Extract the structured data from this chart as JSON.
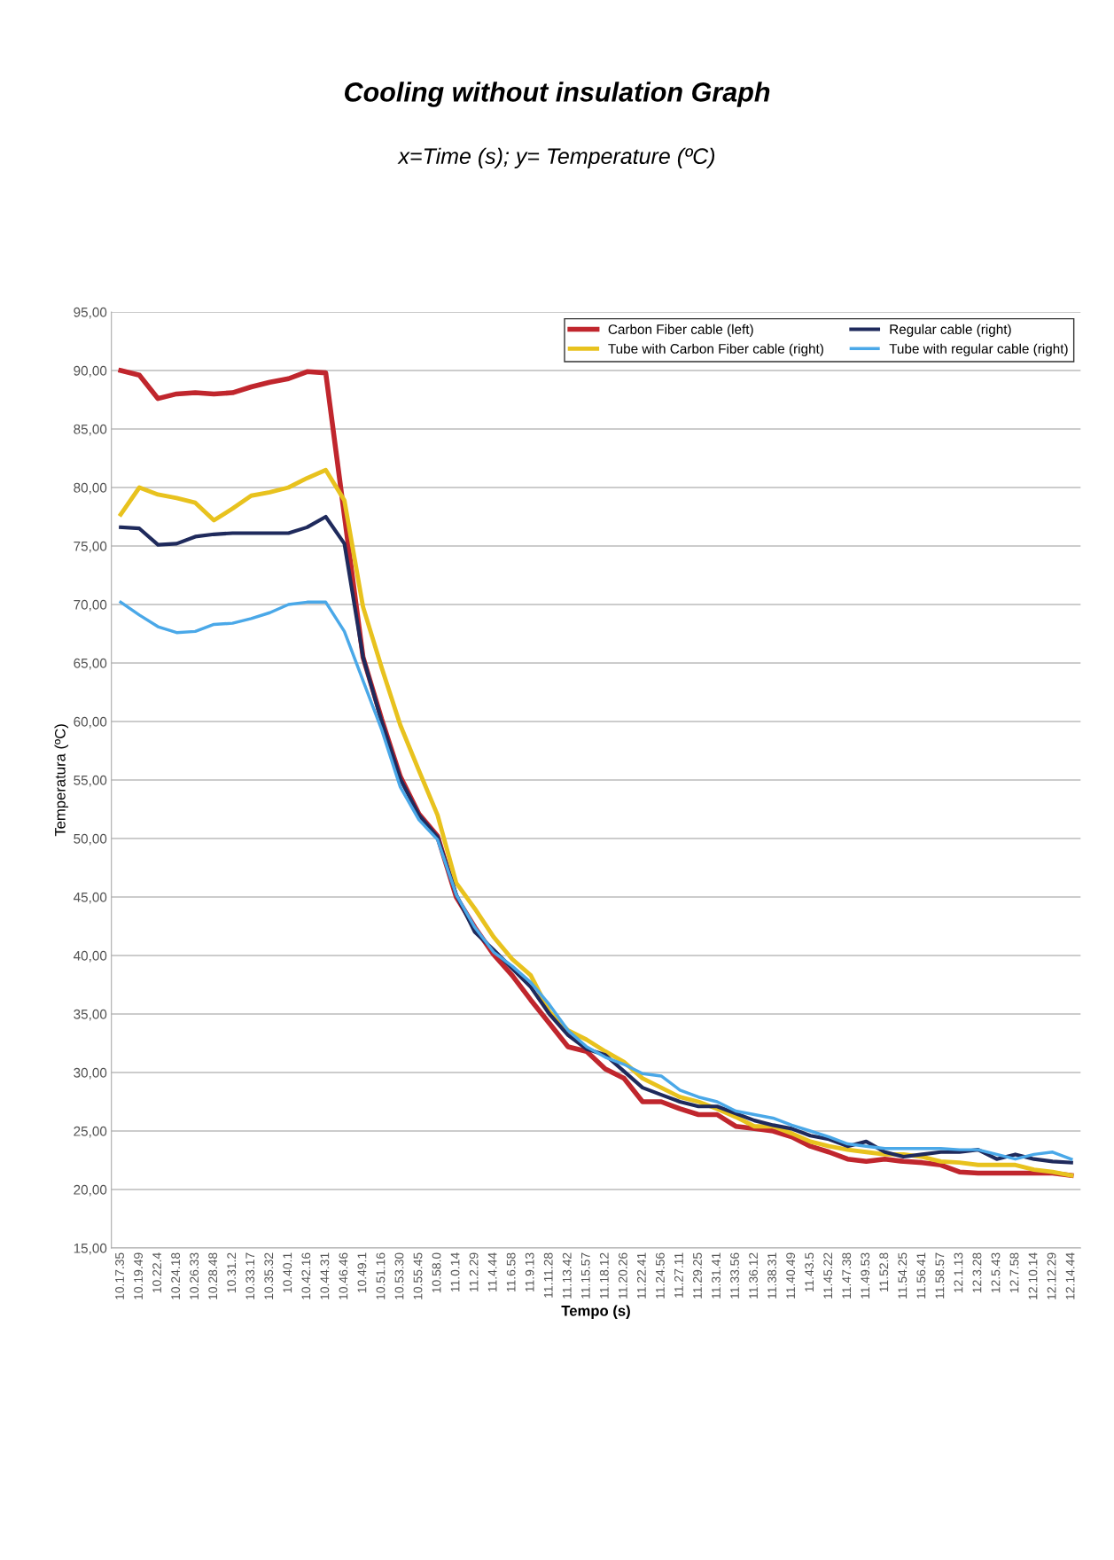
{
  "chart_data": {
    "type": "line",
    "title": "Cooling without insulation Graph",
    "subtitle": "x=Time (s); y= Temperature (ºC)",
    "xlabel": "Tempo (s)",
    "ylabel": "Temperatura (ºC)",
    "categories": [
      "10.17.35",
      "10.19.49",
      "10.22.4",
      "10.24.18",
      "10.26.33",
      "10.28.48",
      "10.31.2",
      "10.33.17",
      "10.35.32",
      "10.40.1",
      "10.42.16",
      "10.44.31",
      "10.46.46",
      "10.49.1",
      "10.51.16",
      "10.53.30",
      "10.55.45",
      "10.58.0",
      "11.0.14",
      "11.2.29",
      "11.4.44",
      "11.6.58",
      "11.9.13",
      "11.11.28",
      "11.13.42",
      "11.15.57",
      "11.18.12",
      "11.20.26",
      "11.22.41",
      "11.24.56",
      "11.27.11",
      "11.29.25",
      "11.31.41",
      "11.33.56",
      "11.36.12",
      "11.38.31",
      "11.40.49",
      "11.43.5",
      "11.45.22",
      "11.47.38",
      "11.49.53",
      "11.52.8",
      "11.54.25",
      "11.56.41",
      "11.58.57",
      "12.1.13",
      "12.3.28",
      "12.5.43",
      "12.7.58",
      "12.10.14",
      "12.12.29",
      "12.14.44"
    ],
    "series": [
      {
        "name": "Carbon Fiber cable (left)",
        "color": "#c0262d",
        "values": [
          90.0,
          89.6,
          87.6,
          88.0,
          88.1,
          88.0,
          88.1,
          88.6,
          89.0,
          89.3,
          89.9,
          89.8,
          77.6,
          65.5,
          60.2,
          55.3,
          52.1,
          50.2,
          45.0,
          42.4,
          40.1,
          38.3,
          36.2,
          34.2,
          32.2,
          31.8,
          30.3,
          29.5,
          27.5,
          27.5,
          26.9,
          26.4,
          26.4,
          25.4,
          25.2,
          25.0,
          24.5,
          23.7,
          23.2,
          22.6,
          22.4,
          22.6,
          22.4,
          22.3,
          22.1,
          21.5,
          21.4,
          21.4,
          21.4,
          21.4,
          21.4,
          21.2
        ]
      },
      {
        "name": "Tube with Carbon Fiber cable (right)",
        "color": "#e8c21e",
        "values": [
          77.7,
          80.0,
          79.4,
          79.1,
          78.7,
          77.2,
          78.2,
          79.3,
          79.6,
          80.0,
          80.8,
          81.5,
          78.9,
          69.8,
          64.6,
          59.7,
          55.8,
          52.0,
          46.2,
          44.0,
          41.6,
          39.7,
          38.3,
          35.2,
          33.6,
          32.8,
          31.8,
          30.9,
          29.5,
          28.7,
          27.9,
          27.5,
          26.9,
          26.2,
          25.4,
          25.4,
          24.8,
          24.1,
          23.7,
          23.4,
          23.2,
          23.0,
          23.0,
          22.8,
          22.4,
          22.3,
          22.1,
          22.1,
          22.1,
          21.7,
          21.5,
          21.2
        ]
      },
      {
        "name": "Regular cable (right)",
        "color": "#1f2a5c",
        "values": [
          76.6,
          76.5,
          75.1,
          75.2,
          75.8,
          76.0,
          76.1,
          76.1,
          76.1,
          76.1,
          76.6,
          77.5,
          75.2,
          65.5,
          60.0,
          55.1,
          52.0,
          50.1,
          45.2,
          42.0,
          40.5,
          38.9,
          37.3,
          35.0,
          33.2,
          32.0,
          31.5,
          30.1,
          28.7,
          28.1,
          27.5,
          27.1,
          27.1,
          26.5,
          25.9,
          25.5,
          25.2,
          24.6,
          24.3,
          23.7,
          24.1,
          23.2,
          22.8,
          23.0,
          23.2,
          23.2,
          23.4,
          22.6,
          23.0,
          22.6,
          22.4,
          22.3
        ]
      },
      {
        "name": "Tube with regular cable (right)",
        "color": "#4aa8e8",
        "values": [
          70.2,
          69.1,
          68.1,
          67.6,
          67.7,
          68.3,
          68.4,
          68.8,
          69.3,
          70.0,
          70.2,
          70.2,
          67.7,
          63.5,
          59.3,
          54.4,
          51.6,
          49.9,
          45.2,
          42.4,
          40.3,
          39.1,
          37.7,
          35.8,
          33.6,
          32.2,
          31.3,
          30.7,
          29.9,
          29.7,
          28.5,
          27.9,
          27.5,
          26.7,
          26.4,
          26.1,
          25.5,
          25.0,
          24.5,
          23.9,
          23.7,
          23.5,
          23.5,
          23.5,
          23.5,
          23.4,
          23.4,
          23.0,
          22.6,
          23.0,
          23.2,
          22.6
        ]
      }
    ],
    "ylim": [
      15,
      95
    ],
    "yticks": [
      {
        "value": 15,
        "label": "15,00"
      },
      {
        "value": 20,
        "label": "20,00"
      },
      {
        "value": 25,
        "label": "25,00"
      },
      {
        "value": 30,
        "label": "30,00"
      },
      {
        "value": 35,
        "label": "35,00"
      },
      {
        "value": 40,
        "label": "40,00"
      },
      {
        "value": 45,
        "label": "45,00"
      },
      {
        "value": 50,
        "label": "50,00"
      },
      {
        "value": 55,
        "label": "55,00"
      },
      {
        "value": 60,
        "label": "60,00"
      },
      {
        "value": 65,
        "label": "65,00"
      },
      {
        "value": 70,
        "label": "70,00"
      },
      {
        "value": 75,
        "label": "75,00"
      },
      {
        "value": 80,
        "label": "80,00"
      },
      {
        "value": 85,
        "label": "85,00"
      },
      {
        "value": 90,
        "label": "90,00"
      },
      {
        "value": 95,
        "label": "95,00"
      }
    ],
    "grid": "y",
    "legend": "top right",
    "marker": "none",
    "line_style": "solid"
  }
}
